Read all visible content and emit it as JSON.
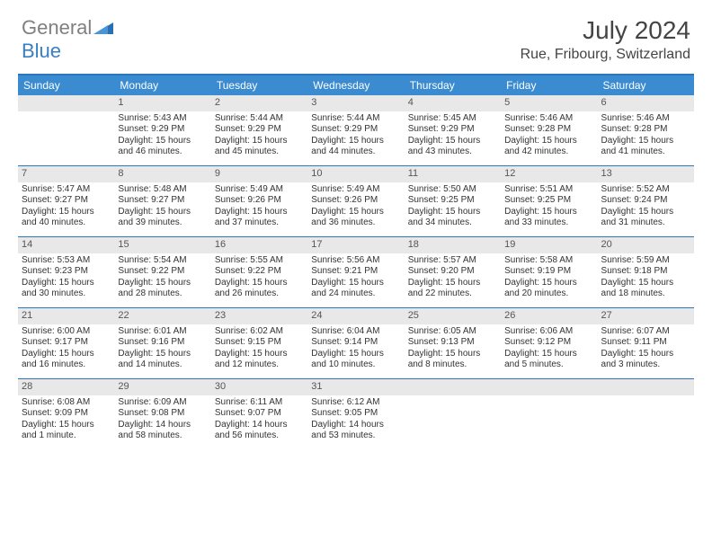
{
  "logo": {
    "text1": "General",
    "text2": "Blue"
  },
  "title": "July 2024",
  "location": "Rue, Fribourg, Switzerland",
  "colors": {
    "header_bg": "#3a8bd0",
    "border": "#2a77bd",
    "daynum_bg": "#e8e8e8",
    "text": "#333333"
  },
  "day_names": [
    "Sunday",
    "Monday",
    "Tuesday",
    "Wednesday",
    "Thursday",
    "Friday",
    "Saturday"
  ],
  "weeks": [
    [
      {
        "n": "",
        "sr": "",
        "ss": "",
        "dl": ""
      },
      {
        "n": "1",
        "sr": "Sunrise: 5:43 AM",
        "ss": "Sunset: 9:29 PM",
        "dl": "Daylight: 15 hours and 46 minutes."
      },
      {
        "n": "2",
        "sr": "Sunrise: 5:44 AM",
        "ss": "Sunset: 9:29 PM",
        "dl": "Daylight: 15 hours and 45 minutes."
      },
      {
        "n": "3",
        "sr": "Sunrise: 5:44 AM",
        "ss": "Sunset: 9:29 PM",
        "dl": "Daylight: 15 hours and 44 minutes."
      },
      {
        "n": "4",
        "sr": "Sunrise: 5:45 AM",
        "ss": "Sunset: 9:29 PM",
        "dl": "Daylight: 15 hours and 43 minutes."
      },
      {
        "n": "5",
        "sr": "Sunrise: 5:46 AM",
        "ss": "Sunset: 9:28 PM",
        "dl": "Daylight: 15 hours and 42 minutes."
      },
      {
        "n": "6",
        "sr": "Sunrise: 5:46 AM",
        "ss": "Sunset: 9:28 PM",
        "dl": "Daylight: 15 hours and 41 minutes."
      }
    ],
    [
      {
        "n": "7",
        "sr": "Sunrise: 5:47 AM",
        "ss": "Sunset: 9:27 PM",
        "dl": "Daylight: 15 hours and 40 minutes."
      },
      {
        "n": "8",
        "sr": "Sunrise: 5:48 AM",
        "ss": "Sunset: 9:27 PM",
        "dl": "Daylight: 15 hours and 39 minutes."
      },
      {
        "n": "9",
        "sr": "Sunrise: 5:49 AM",
        "ss": "Sunset: 9:26 PM",
        "dl": "Daylight: 15 hours and 37 minutes."
      },
      {
        "n": "10",
        "sr": "Sunrise: 5:49 AM",
        "ss": "Sunset: 9:26 PM",
        "dl": "Daylight: 15 hours and 36 minutes."
      },
      {
        "n": "11",
        "sr": "Sunrise: 5:50 AM",
        "ss": "Sunset: 9:25 PM",
        "dl": "Daylight: 15 hours and 34 minutes."
      },
      {
        "n": "12",
        "sr": "Sunrise: 5:51 AM",
        "ss": "Sunset: 9:25 PM",
        "dl": "Daylight: 15 hours and 33 minutes."
      },
      {
        "n": "13",
        "sr": "Sunrise: 5:52 AM",
        "ss": "Sunset: 9:24 PM",
        "dl": "Daylight: 15 hours and 31 minutes."
      }
    ],
    [
      {
        "n": "14",
        "sr": "Sunrise: 5:53 AM",
        "ss": "Sunset: 9:23 PM",
        "dl": "Daylight: 15 hours and 30 minutes."
      },
      {
        "n": "15",
        "sr": "Sunrise: 5:54 AM",
        "ss": "Sunset: 9:22 PM",
        "dl": "Daylight: 15 hours and 28 minutes."
      },
      {
        "n": "16",
        "sr": "Sunrise: 5:55 AM",
        "ss": "Sunset: 9:22 PM",
        "dl": "Daylight: 15 hours and 26 minutes."
      },
      {
        "n": "17",
        "sr": "Sunrise: 5:56 AM",
        "ss": "Sunset: 9:21 PM",
        "dl": "Daylight: 15 hours and 24 minutes."
      },
      {
        "n": "18",
        "sr": "Sunrise: 5:57 AM",
        "ss": "Sunset: 9:20 PM",
        "dl": "Daylight: 15 hours and 22 minutes."
      },
      {
        "n": "19",
        "sr": "Sunrise: 5:58 AM",
        "ss": "Sunset: 9:19 PM",
        "dl": "Daylight: 15 hours and 20 minutes."
      },
      {
        "n": "20",
        "sr": "Sunrise: 5:59 AM",
        "ss": "Sunset: 9:18 PM",
        "dl": "Daylight: 15 hours and 18 minutes."
      }
    ],
    [
      {
        "n": "21",
        "sr": "Sunrise: 6:00 AM",
        "ss": "Sunset: 9:17 PM",
        "dl": "Daylight: 15 hours and 16 minutes."
      },
      {
        "n": "22",
        "sr": "Sunrise: 6:01 AM",
        "ss": "Sunset: 9:16 PM",
        "dl": "Daylight: 15 hours and 14 minutes."
      },
      {
        "n": "23",
        "sr": "Sunrise: 6:02 AM",
        "ss": "Sunset: 9:15 PM",
        "dl": "Daylight: 15 hours and 12 minutes."
      },
      {
        "n": "24",
        "sr": "Sunrise: 6:04 AM",
        "ss": "Sunset: 9:14 PM",
        "dl": "Daylight: 15 hours and 10 minutes."
      },
      {
        "n": "25",
        "sr": "Sunrise: 6:05 AM",
        "ss": "Sunset: 9:13 PM",
        "dl": "Daylight: 15 hours and 8 minutes."
      },
      {
        "n": "26",
        "sr": "Sunrise: 6:06 AM",
        "ss": "Sunset: 9:12 PM",
        "dl": "Daylight: 15 hours and 5 minutes."
      },
      {
        "n": "27",
        "sr": "Sunrise: 6:07 AM",
        "ss": "Sunset: 9:11 PM",
        "dl": "Daylight: 15 hours and 3 minutes."
      }
    ],
    [
      {
        "n": "28",
        "sr": "Sunrise: 6:08 AM",
        "ss": "Sunset: 9:09 PM",
        "dl": "Daylight: 15 hours and 1 minute."
      },
      {
        "n": "29",
        "sr": "Sunrise: 6:09 AM",
        "ss": "Sunset: 9:08 PM",
        "dl": "Daylight: 14 hours and 58 minutes."
      },
      {
        "n": "30",
        "sr": "Sunrise: 6:11 AM",
        "ss": "Sunset: 9:07 PM",
        "dl": "Daylight: 14 hours and 56 minutes."
      },
      {
        "n": "31",
        "sr": "Sunrise: 6:12 AM",
        "ss": "Sunset: 9:05 PM",
        "dl": "Daylight: 14 hours and 53 minutes."
      },
      {
        "n": "",
        "sr": "",
        "ss": "",
        "dl": ""
      },
      {
        "n": "",
        "sr": "",
        "ss": "",
        "dl": ""
      },
      {
        "n": "",
        "sr": "",
        "ss": "",
        "dl": ""
      }
    ]
  ]
}
